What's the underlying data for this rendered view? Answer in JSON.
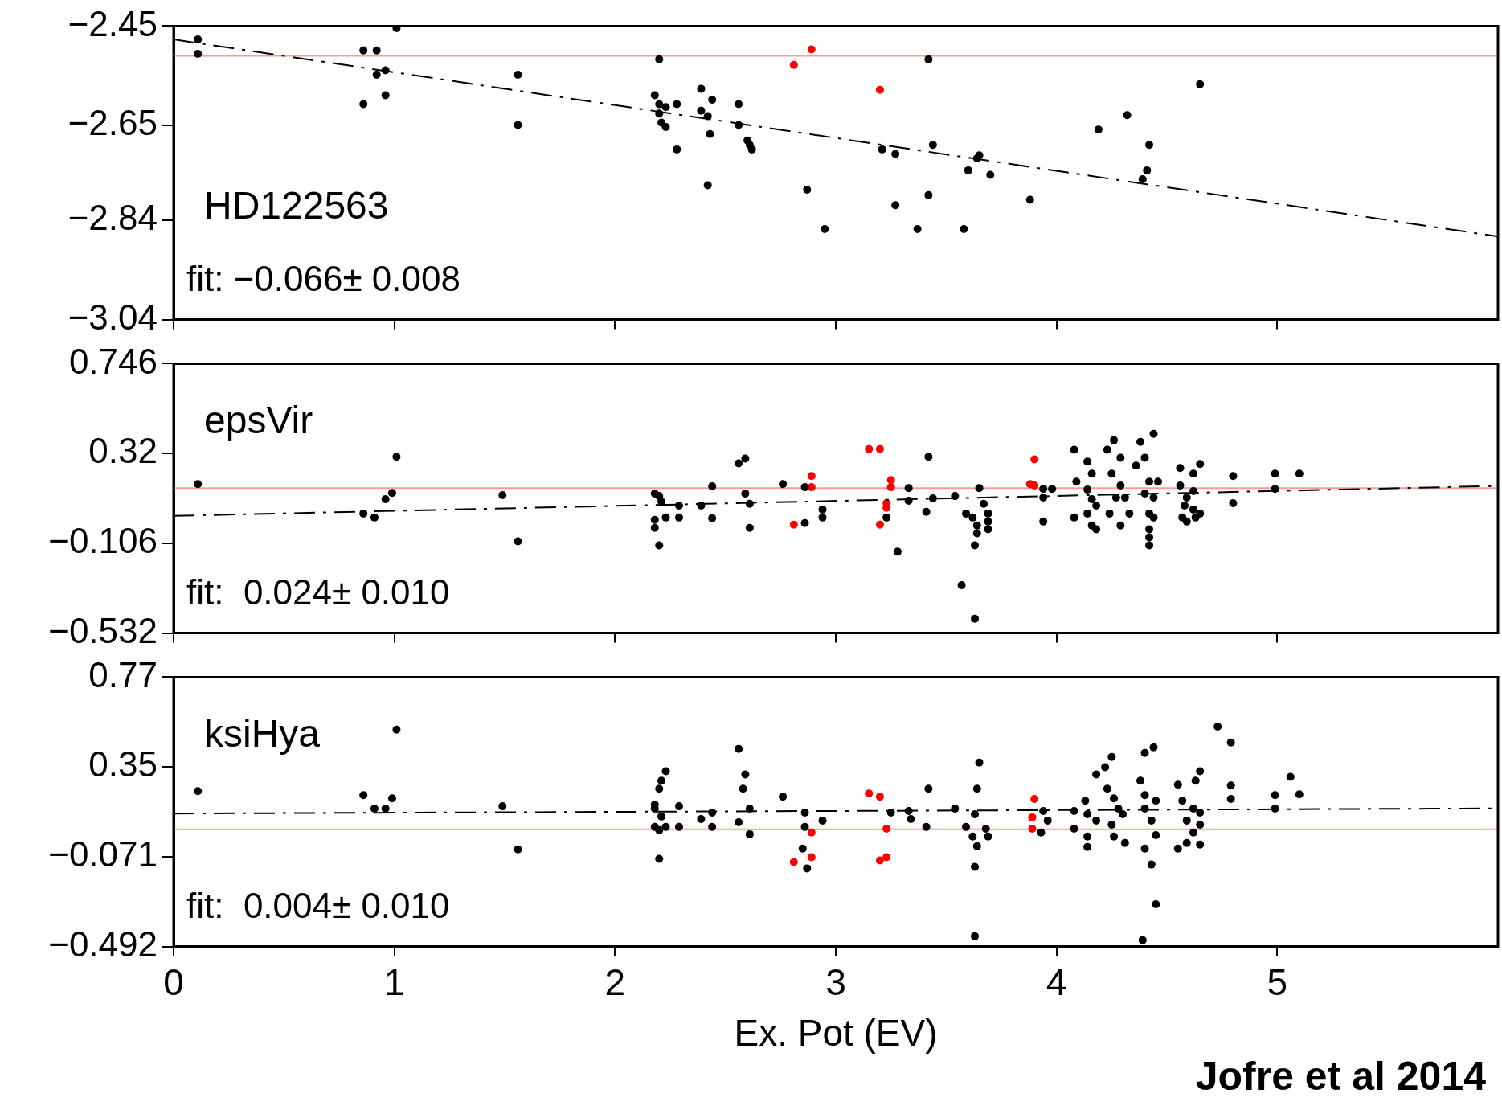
{
  "chart_data": [
    {
      "type": "scatter",
      "xlim": [
        0,
        6
      ],
      "xticks": [
        0,
        1,
        2,
        3,
        4,
        5
      ],
      "ylim": [
        -3.04,
        -2.45
      ],
      "yticks": [
        -2.45,
        -2.65,
        -2.84,
        -3.04
      ],
      "tick_labels": "y",
      "marker": "circle",
      "annotations": [
        "HD122563",
        "fit: −0.066± 0.008"
      ],
      "ref_lines": [
        {
          "axis": "y",
          "value": -2.51,
          "color": "#ff9999"
        }
      ],
      "series": [
        {
          "color": "#000000",
          "x": [
            0.11,
            0.11,
            0.86,
            0.92,
            1.01,
            0.92,
            0.96,
            0.86,
            0.96,
            1.56,
            1.56,
            2.2,
            2.18,
            2.2,
            2.23,
            2.2,
            2.21,
            2.23,
            2.28,
            2.28,
            2.39,
            2.44,
            2.39,
            2.42,
            2.43,
            2.42,
            2.56,
            2.56,
            2.6,
            2.61,
            2.62,
            2.87,
            2.95,
            3.21,
            3.27,
            3.27,
            3.37,
            3.42,
            3.44,
            3.42,
            3.58,
            3.6,
            3.64,
            3.65,
            3.7,
            3.88,
            4.19,
            4.32,
            4.39,
            4.41,
            4.42,
            4.65
          ],
          "values": [
            -2.477,
            -2.506,
            -2.499,
            -2.499,
            -2.454,
            -2.548,
            -2.539,
            -2.607,
            -2.589,
            -2.548,
            -2.649,
            -2.517,
            -2.589,
            -2.607,
            -2.613,
            -2.626,
            -2.644,
            -2.653,
            -2.607,
            -2.698,
            -2.576,
            -2.598,
            -2.62,
            -2.631,
            -2.667,
            -2.77,
            -2.607,
            -2.649,
            -2.68,
            -2.689,
            -2.698,
            -2.779,
            -2.858,
            -2.698,
            -2.707,
            -2.81,
            -2.858,
            -2.517,
            -2.689,
            -2.79,
            -2.858,
            -2.74,
            -2.716,
            -2.71,
            -2.749,
            -2.799,
            -2.658,
            -2.629,
            -2.758,
            -2.74,
            -2.689,
            -2.567
          ]
        },
        {
          "color": "#ff0000",
          "x": [
            2.81,
            2.89,
            3.2
          ],
          "values": [
            -2.528,
            -2.497,
            -2.578
          ]
        },
        {
          "type": "line",
          "color": "#000000",
          "line_style": "dashed",
          "marker": "none",
          "x": [
            0,
            6
          ],
          "values": [
            -2.477,
            -2.873
          ]
        }
      ]
    },
    {
      "type": "scatter",
      "xlim": [
        0,
        6
      ],
      "xticks": [
        0,
        1,
        2,
        3,
        4,
        5
      ],
      "ylim": [
        -0.532,
        0.746
      ],
      "yticks": [
        0.746,
        0.32,
        -0.106,
        -0.532
      ],
      "tick_labels": "y",
      "marker": "circle",
      "annotations": [
        "epsVir",
        "fit:  0.024± 0.010"
      ],
      "ref_lines": [
        {
          "axis": "y",
          "value": 0.156,
          "color": "#ff9999"
        }
      ],
      "series": [
        {
          "color": "#000000",
          "x": [
            0.11,
            0.86,
            0.91,
            0.96,
            0.99,
            1.01,
            1.49,
            1.56,
            2.18,
            2.2,
            2.21,
            2.18,
            2.18,
            2.2,
            2.23,
            2.29,
            2.29,
            2.39,
            2.44,
            2.44,
            2.56,
            2.59,
            2.59,
            2.61,
            2.61,
            2.76,
            2.86,
            2.86,
            2.94,
            2.94,
            3.23,
            3.28,
            3.33,
            3.33,
            3.41,
            3.42,
            3.44,
            3.54,
            3.57,
            3.63,
            3.65,
            3.59,
            3.62,
            3.64,
            3.64,
            3.63,
            3.69,
            3.69,
            3.69,
            3.67,
            3.94,
            3.98,
            3.94,
            3.94,
            4.08,
            4.14,
            4.09,
            4.16,
            4.14,
            4.16,
            4.18,
            4.14,
            4.18,
            4.08,
            4.16,
            4.23,
            4.26,
            4.29,
            4.25,
            4.29,
            4.27,
            4.31,
            4.33,
            4.24,
            4.29,
            4.36,
            4.38,
            4.4,
            4.44,
            4.42,
            4.46,
            4.4,
            4.44,
            4.42,
            4.42,
            4.44,
            4.42,
            4.42,
            4.56,
            4.62,
            4.65,
            4.56,
            4.62,
            4.59,
            4.58,
            4.62,
            4.57,
            4.63,
            4.65,
            4.59,
            4.8,
            4.8,
            4.99,
            4.99,
            5.1
          ],
          "values": [
            0.175,
            0.035,
            0.016,
            0.103,
            0.133,
            0.304,
            0.122,
            -0.097,
            0.13,
            0.118,
            0.092,
            0.005,
            -0.033,
            -0.116,
            0.016,
            0.073,
            0.016,
            0.073,
            0.164,
            0.013,
            0.273,
            0.296,
            0.13,
            0.081,
            -0.033,
            0.175,
            -0.01,
            0.16,
            0.054,
            0.016,
            0.016,
            -0.146,
            0.156,
            0.096,
            0.043,
            0.304,
            0.107,
            0.118,
            -0.305,
            -0.464,
            0.156,
            0.035,
            0.016,
            -0.022,
            -0.059,
            -0.116,
            0.035,
            -0.003,
            -0.04,
            0.081,
            0.152,
            0.152,
            0.111,
            -0.003,
            0.338,
            0.281,
            0.186,
            0.224,
            0.149,
            0.103,
            0.073,
            0.035,
            -0.04,
            0.016,
            -0.022,
            0.338,
            0.383,
            0.3,
            0.224,
            0.168,
            0.111,
            0.111,
            0.035,
            0.035,
            -0.022,
            0.262,
            0.375,
            0.3,
            0.413,
            0.186,
            0.186,
            0.13,
            0.111,
            0.035,
            -0.04,
            0.016,
            -0.078,
            -0.116,
            0.251,
            0.224,
            0.27,
            0.168,
            0.141,
            0.111,
            0.073,
            0.054,
            0.016,
            0.016,
            0.035,
            -0.003,
            0.213,
            0.084,
            0.224,
            0.152,
            0.224
          ]
        },
        {
          "color": "#ff0000",
          "x": [
            2.81,
            2.89,
            2.89,
            3.15,
            3.2,
            3.25,
            3.25,
            3.23,
            3.23,
            3.2,
            3.9,
            3.88,
            3.9
          ],
          "values": [
            -0.018,
            0.213,
            0.16,
            0.341,
            0.341,
            0.194,
            0.16,
            0.084,
            0.062,
            -0.018,
            0.292,
            0.175,
            0.168
          ]
        },
        {
          "type": "line",
          "color": "#000000",
          "line_style": "dashed",
          "marker": "none",
          "x": [
            0,
            6
          ],
          "values": [
            0.024,
            0.166
          ]
        }
      ]
    },
    {
      "type": "scatter",
      "xlim": [
        0,
        6
      ],
      "xticks": [
        0,
        1,
        2,
        3,
        4,
        5
      ],
      "ylim": [
        -0.492,
        0.77
      ],
      "yticks": [
        0.77,
        0.35,
        -0.071,
        -0.492
      ],
      "xlabel": "Ex. Pot (EV)",
      "marker": "circle",
      "annotations": [
        "ksiHya",
        "fit:  0.004± 0.010",
        "Jofre et al 2014"
      ],
      "ref_lines": [
        {
          "axis": "y",
          "value": 0.057,
          "color": "#ff9999"
        }
      ],
      "series": [
        {
          "color": "#000000",
          "x": [
            0.11,
            0.86,
            0.91,
            0.96,
            0.99,
            1.01,
            1.49,
            1.56,
            2.18,
            2.2,
            2.21,
            2.23,
            2.18,
            2.21,
            2.18,
            2.2,
            2.23,
            2.29,
            2.29,
            2.2,
            2.39,
            2.44,
            2.44,
            2.56,
            2.59,
            2.58,
            2.56,
            2.61,
            2.61,
            2.76,
            2.86,
            2.86,
            2.87,
            2.85,
            2.94,
            3.25,
            3.33,
            3.34,
            3.42,
            3.41,
            3.54,
            3.65,
            3.64,
            3.63,
            3.59,
            3.62,
            3.64,
            3.63,
            3.68,
            3.69,
            3.63,
            3.94,
            3.96,
            3.93,
            4.08,
            4.13,
            4.14,
            4.08,
            4.14,
            4.14,
            4.18,
            4.18,
            4.22,
            4.25,
            4.23,
            4.26,
            4.28,
            4.3,
            4.25,
            4.26,
            4.31,
            4.38,
            4.4,
            4.44,
            4.4,
            4.45,
            4.4,
            4.43,
            4.45,
            4.4,
            4.43,
            4.45,
            4.39,
            4.55,
            4.65,
            4.63,
            4.57,
            4.62,
            4.65,
            4.59,
            4.65,
            4.62,
            4.59,
            4.55,
            4.65,
            4.73,
            4.79,
            4.79,
            4.79,
            4.99,
            4.99,
            5.06,
            5.1
          ],
          "values": [
            0.236,
            0.217,
            0.154,
            0.154,
            0.202,
            0.524,
            0.165,
            -0.037,
            0.173,
            0.247,
            0.285,
            0.329,
            0.154,
            0.117,
            0.068,
            0.053,
            0.068,
            0.165,
            0.068,
            -0.081,
            0.105,
            0.135,
            0.068,
            0.434,
            0.314,
            0.247,
            0.09,
            0.154,
            0.034,
            0.21,
            0.135,
            0.068,
            -0.126,
            -0.033,
            0.098,
            0.135,
            0.143,
            0.105,
            0.247,
            0.068,
            0.154,
            0.37,
            0.247,
            0.128,
            0.068,
            0.023,
            -0.022,
            -0.119,
            0.06,
            0.023,
            -0.444,
            0.143,
            0.098,
            0.042,
            0.143,
            0.191,
            0.128,
            0.06,
            0.023,
            -0.026,
            0.098,
            0.314,
            0.348,
            0.396,
            0.247,
            0.202,
            0.154,
            0.128,
            0.079,
            0.023,
            -0.007,
            0.285,
            0.415,
            0.441,
            0.217,
            0.191,
            0.154,
            0.098,
            0.03,
            -0.033,
            -0.108,
            -0.294,
            -0.462,
            0.266,
            0.329,
            0.285,
            0.191,
            0.154,
            0.135,
            0.098,
            0.079,
            0.042,
            -0.007,
            -0.033,
            -0.014,
            0.538,
            0.464,
            0.262,
            0.199,
            0.217,
            0.154,
            0.303,
            0.221
          ]
        },
        {
          "color": "#ff0000",
          "x": [
            2.81,
            2.89,
            2.89,
            3.15,
            3.2,
            3.23,
            3.23,
            3.2,
            3.9,
            3.89,
            3.89
          ],
          "values": [
            -0.096,
            -0.074,
            0.042,
            0.225,
            0.21,
            0.06,
            -0.074,
            -0.089,
            0.199,
            0.113,
            0.06
          ]
        },
        {
          "type": "line",
          "color": "#000000",
          "line_style": "dashed",
          "marker": "none",
          "x": [
            0,
            6
          ],
          "values": [
            0.131,
            0.155
          ]
        }
      ]
    }
  ]
}
